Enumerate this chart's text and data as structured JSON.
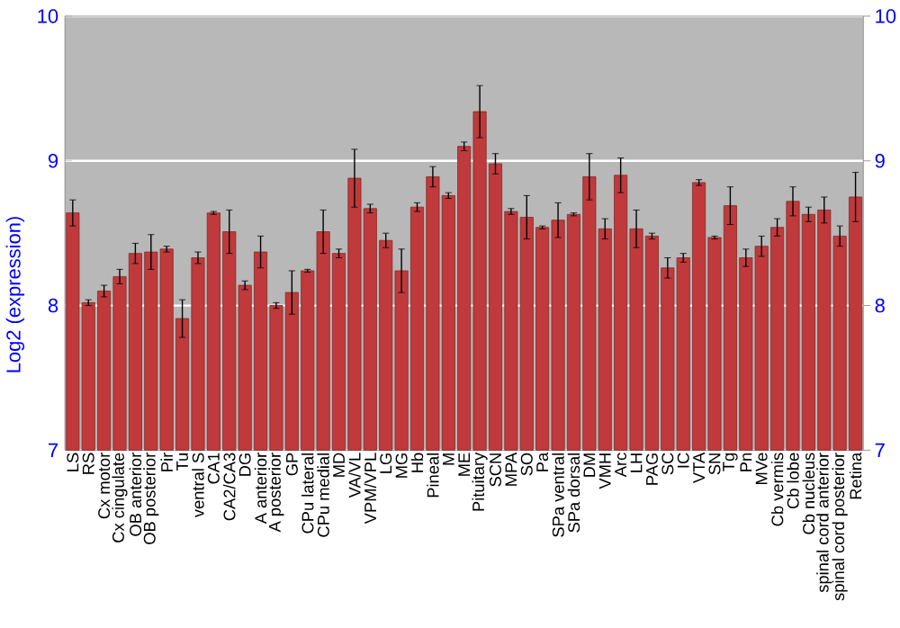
{
  "chart_data": {
    "type": "bar",
    "ylabel": "Log2 (expression)",
    "categories": [
      "LS",
      "RS",
      "Cx motor",
      "Cx cingulate",
      "OB anterior",
      "OB posterior",
      "Pir",
      "Tu",
      "ventral S",
      "CA1",
      "CA2/CA3",
      "DG",
      "A anterior",
      "A posterior",
      "GP",
      "CPu lateral",
      "CPu medial",
      "MD",
      "VA/VL",
      "VPM/VPL",
      "LG",
      "MG",
      "Hb",
      "Pineal",
      "M",
      "ME",
      "Pituitary",
      "SCN",
      "MPA",
      "SO",
      "Pa",
      "SPa ventral",
      "SPa dorsal",
      "DM",
      "VMH",
      "Arc",
      "LH",
      "PAG",
      "SC",
      "IC",
      "VTA",
      "SN",
      "Tg",
      "Pn",
      "MVe",
      "Cb vermis",
      "Cb lobe",
      "Cb nucleus",
      "spinal cord anterior",
      "spinal cord posterior",
      "Retina"
    ],
    "values": [
      8.64,
      8.02,
      8.1,
      8.2,
      8.36,
      8.37,
      8.39,
      7.91,
      8.33,
      8.64,
      8.51,
      8.14,
      8.37,
      8.0,
      8.09,
      8.24,
      8.51,
      8.36,
      8.88,
      8.67,
      8.45,
      8.24,
      8.68,
      8.89,
      8.76,
      9.1,
      9.34,
      8.98,
      8.65,
      8.61,
      8.54,
      8.59,
      8.63,
      8.89,
      8.53,
      8.9,
      8.53,
      8.48,
      8.26,
      8.33,
      8.85,
      8.47,
      8.69,
      8.33,
      8.41,
      8.54,
      8.72,
      8.63,
      8.66,
      8.48,
      8.75
    ],
    "errors": [
      0.09,
      0.02,
      0.04,
      0.05,
      0.07,
      0.12,
      0.02,
      0.13,
      0.04,
      0.01,
      0.15,
      0.03,
      0.11,
      0.02,
      0.15,
      0.01,
      0.15,
      0.03,
      0.2,
      0.03,
      0.05,
      0.15,
      0.03,
      0.07,
      0.02,
      0.03,
      0.18,
      0.07,
      0.02,
      0.15,
      0.01,
      0.12,
      0.01,
      0.16,
      0.07,
      0.12,
      0.13,
      0.02,
      0.07,
      0.03,
      0.02,
      0.01,
      0.13,
      0.06,
      0.07,
      0.06,
      0.1,
      0.05,
      0.09,
      0.07,
      0.17
    ],
    "color": "#c0393b",
    "ylim": [
      7,
      10
    ],
    "yticks": [
      7,
      8,
      9,
      10
    ],
    "y2lim": [
      7,
      10
    ],
    "y2ticks": [
      7,
      8,
      9,
      10
    ],
    "grid": "y"
  }
}
